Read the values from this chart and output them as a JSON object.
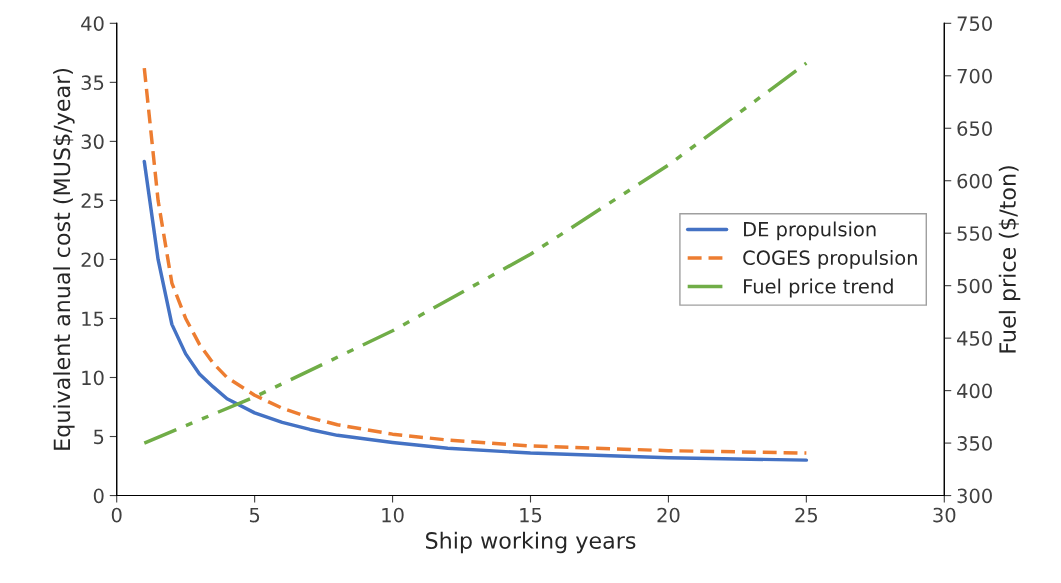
{
  "chart_data": {
    "type": "line",
    "xlabel": "Ship working years",
    "ylabel": "Equivalent anual cost (MUS$/year)",
    "y2label": "Fuel price ($/ton)",
    "xlim": [
      0,
      30
    ],
    "xticks": [
      0,
      5,
      10,
      15,
      20,
      25,
      30
    ],
    "ylim": [
      0,
      40
    ],
    "yticks": [
      0,
      5,
      10,
      15,
      20,
      25,
      30,
      35,
      40
    ],
    "y2lim": [
      300,
      750
    ],
    "y2ticks": [
      300,
      350,
      400,
      450,
      500,
      550,
      600,
      650,
      700,
      750
    ],
    "grid": false,
    "legend": "right",
    "marker": "none",
    "series": [
      {
        "name": "DE propulsion",
        "color": "#4472c4",
        "line_style": "solid",
        "x": [
          1,
          1.5,
          2,
          2.5,
          3,
          3.5,
          4,
          5,
          6,
          7,
          8,
          10,
          12,
          15,
          20,
          25
        ],
        "values": [
          28.3,
          20,
          14.5,
          12,
          10.3,
          9.2,
          8.2,
          7,
          6.2,
          5.6,
          5.1,
          4.5,
          4.0,
          3.6,
          3.2,
          3.0
        ]
      },
      {
        "name": "COGES propulsion",
        "color": "#ed7d31",
        "line_style": "dashed",
        "x": [
          1,
          1.5,
          2,
          2.5,
          3,
          3.5,
          4,
          5,
          6,
          7,
          8,
          10,
          12,
          15,
          20,
          25
        ],
        "values": [
          36.2,
          25,
          18,
          15,
          12.8,
          11.2,
          10,
          8.5,
          7.4,
          6.6,
          6,
          5.2,
          4.7,
          4.2,
          3.8,
          3.6
        ]
      },
      {
        "name": "Fuel price trend",
        "color": "#70ad47",
        "line_style": "dashdotdot",
        "axis": "y2",
        "x": [
          1,
          5,
          10,
          15,
          20,
          25
        ],
        "values": [
          350,
          394,
          457,
          530,
          615,
          712
        ]
      }
    ]
  }
}
